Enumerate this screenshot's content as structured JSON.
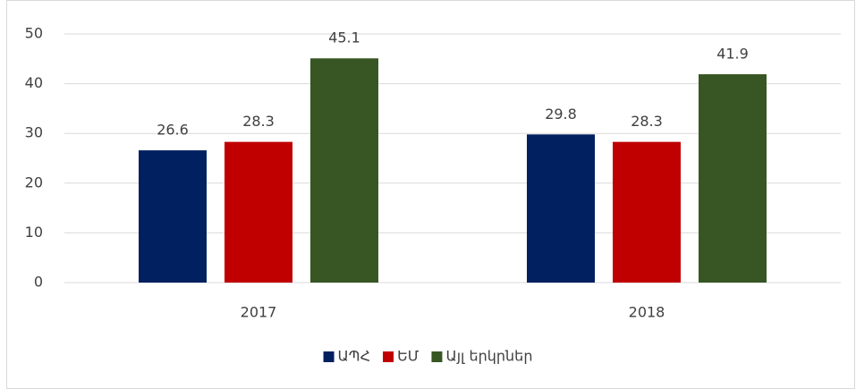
{
  "chart_data": {
    "type": "bar",
    "categories": [
      "2017",
      "2018"
    ],
    "series": [
      {
        "name": "ԱՊՀ",
        "color": "#002060",
        "values": [
          26.6,
          29.8
        ]
      },
      {
        "name": "ԵՄ",
        "color": "#c00000",
        "values": [
          28.3,
          28.3
        ]
      },
      {
        "name": "Այլ երկրներ",
        "color": "#375623",
        "values": [
          45.1,
          41.9
        ]
      }
    ],
    "ylim": [
      0,
      50
    ],
    "yticks": [
      0,
      10,
      20,
      30,
      40,
      50
    ],
    "grid": true,
    "legend": "bottom"
  }
}
